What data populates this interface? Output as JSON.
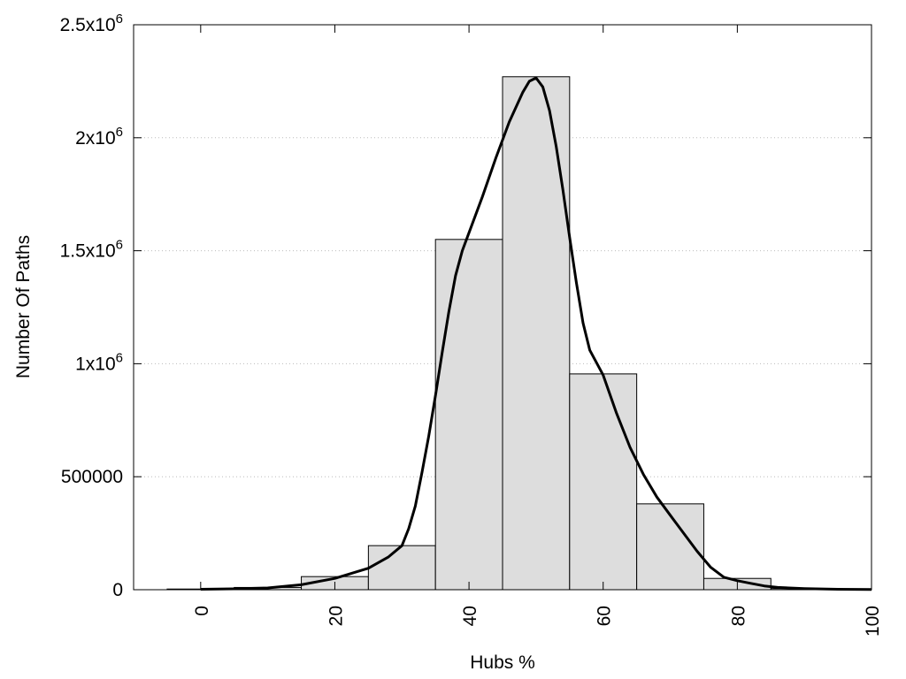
{
  "chart_data": {
    "type": "bar",
    "title": "",
    "xlabel": "Hubs %",
    "ylabel": "Number Of Paths",
    "xlim": [
      -10,
      100
    ],
    "ylim": [
      0,
      2500000
    ],
    "grid": "horizontal-dotted",
    "bar_width": 10,
    "bar_color": "#dddddd",
    "line_color": "#000000",
    "x_ticks": [
      {
        "value": 0,
        "label": "0"
      },
      {
        "value": 20,
        "label": "20"
      },
      {
        "value": 40,
        "label": "40"
      },
      {
        "value": 60,
        "label": "60"
      },
      {
        "value": 80,
        "label": "80"
      },
      {
        "value": 100,
        "label": "100"
      }
    ],
    "y_ticks": [
      {
        "value": 0,
        "label": "0",
        "base": "",
        "exp": ""
      },
      {
        "value": 500000,
        "label": "500000",
        "base": "",
        "exp": ""
      },
      {
        "value": 1000000,
        "label": "",
        "base": "1x10",
        "exp": "6"
      },
      {
        "value": 1500000,
        "label": "",
        "base": "1.5x10",
        "exp": "6"
      },
      {
        "value": 2000000,
        "label": "",
        "base": "2x10",
        "exp": "6"
      },
      {
        "value": 2500000,
        "label": "",
        "base": "2.5x10",
        "exp": "6"
      }
    ],
    "bars": [
      {
        "x": 0,
        "value": 3000
      },
      {
        "x": 10,
        "value": 10000
      },
      {
        "x": 20,
        "value": 58000
      },
      {
        "x": 30,
        "value": 195000
      },
      {
        "x": 40,
        "value": 1550000
      },
      {
        "x": 50,
        "value": 2270000
      },
      {
        "x": 60,
        "value": 955000
      },
      {
        "x": 70,
        "value": 380000
      },
      {
        "x": 80,
        "value": 50000
      },
      {
        "x": 90,
        "value": 5000
      }
    ],
    "curve": [
      [
        0,
        2000
      ],
      [
        5,
        4000
      ],
      [
        10,
        8000
      ],
      [
        15,
        22000
      ],
      [
        20,
        50000
      ],
      [
        25,
        95000
      ],
      [
        28,
        145000
      ],
      [
        30,
        195000
      ],
      [
        31,
        270000
      ],
      [
        32,
        370000
      ],
      [
        33,
        520000
      ],
      [
        34,
        680000
      ],
      [
        35,
        860000
      ],
      [
        36,
        1050000
      ],
      [
        37,
        1230000
      ],
      [
        38,
        1390000
      ],
      [
        39,
        1500000
      ],
      [
        40,
        1580000
      ],
      [
        42,
        1740000
      ],
      [
        44,
        1910000
      ],
      [
        46,
        2070000
      ],
      [
        48,
        2200000
      ],
      [
        49,
        2250000
      ],
      [
        50,
        2265000
      ],
      [
        51,
        2225000
      ],
      [
        52,
        2120000
      ],
      [
        53,
        1960000
      ],
      [
        54,
        1770000
      ],
      [
        55,
        1560000
      ],
      [
        56,
        1360000
      ],
      [
        57,
        1180000
      ],
      [
        58,
        1060000
      ],
      [
        60,
        950000
      ],
      [
        62,
        780000
      ],
      [
        64,
        630000
      ],
      [
        66,
        510000
      ],
      [
        68,
        410000
      ],
      [
        70,
        330000
      ],
      [
        72,
        250000
      ],
      [
        74,
        170000
      ],
      [
        76,
        100000
      ],
      [
        78,
        55000
      ],
      [
        80,
        40000
      ],
      [
        82,
        28000
      ],
      [
        84,
        17000
      ],
      [
        86,
        10000
      ],
      [
        90,
        5000
      ],
      [
        95,
        2000
      ],
      [
        100,
        1000
      ]
    ]
  }
}
